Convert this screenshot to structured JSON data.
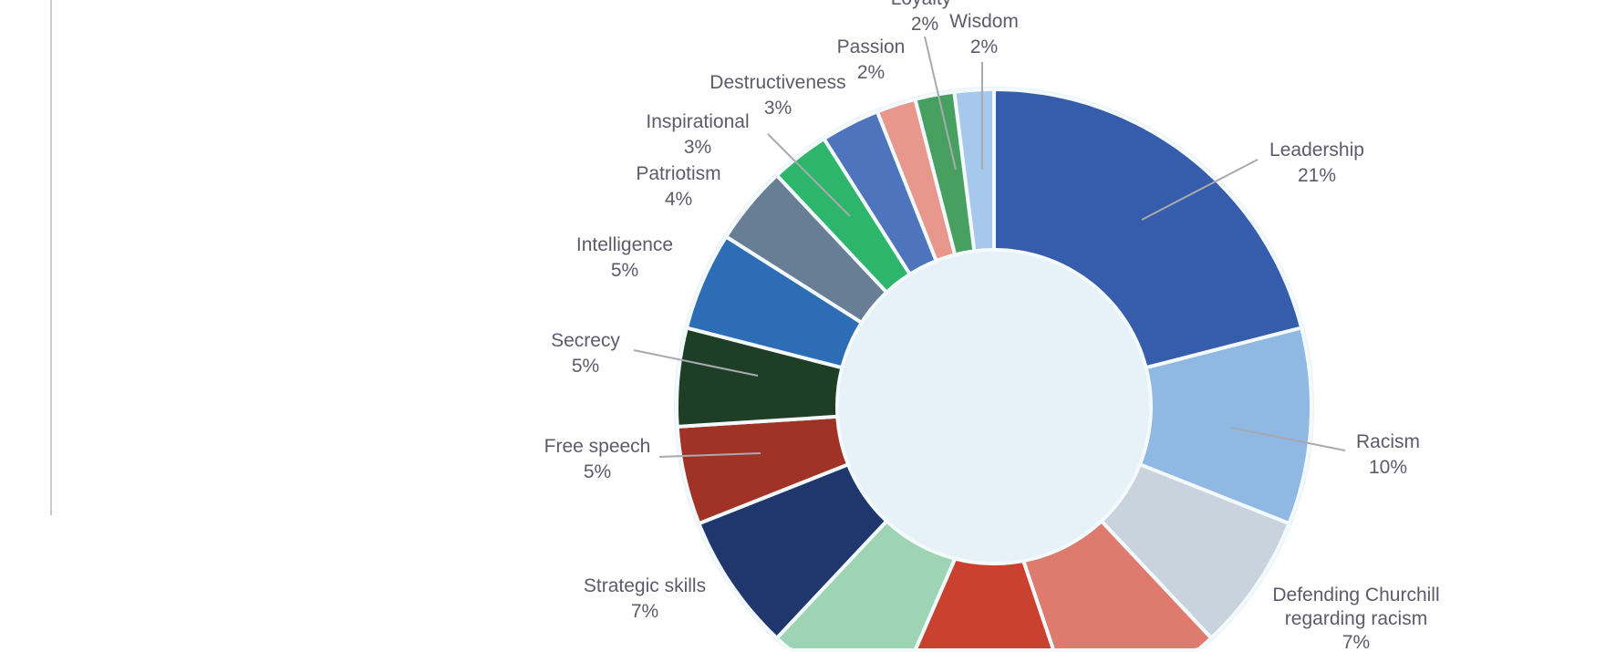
{
  "chart_data": {
    "type": "pie",
    "donut": true,
    "unit": "%",
    "slices": [
      {
        "name": "Leadership",
        "label_lines": [
          "Leadership"
        ],
        "value": 21,
        "value_label": "21%",
        "color": "#365DAB"
      },
      {
        "name": "Racism",
        "label_lines": [
          "Racism"
        ],
        "value": 10,
        "value_label": "10%",
        "color": "#8FB8E3"
      },
      {
        "name": "Defending Churchill regarding racism",
        "label_lines": [
          "Defending Churchill",
          "regarding racism"
        ],
        "value": 7,
        "value_label": "7%",
        "color": "#C8D3DE"
      },
      {
        "name": "",
        "label_lines": [],
        "value": 9,
        "value_label": "",
        "color": "#DE7A6E"
      },
      {
        "name": "",
        "label_lines": [],
        "value": 7,
        "value_label": "",
        "color": "#CB4130"
      },
      {
        "name": "",
        "label_lines": [],
        "value": 8,
        "value_label": "",
        "color": "#9DD4B4"
      },
      {
        "name": "Strategic skills",
        "label_lines": [
          "Strategic skills"
        ],
        "value": 7,
        "value_label": "7%",
        "color": "#1F376C"
      },
      {
        "name": "Free speech",
        "label_lines": [
          "Free speech"
        ],
        "value": 5,
        "value_label": "5%",
        "color": "#A13226"
      },
      {
        "name": "Secrecy",
        "label_lines": [
          "Secrecy"
        ],
        "value": 5,
        "value_label": "5%",
        "color": "#1E3F26"
      },
      {
        "name": "Intelligence",
        "label_lines": [
          "Intelligence"
        ],
        "value": 5,
        "value_label": "5%",
        "color": "#2D6DB5"
      },
      {
        "name": "Patriotism",
        "label_lines": [
          "Patriotism"
        ],
        "value": 4,
        "value_label": "4%",
        "color": "#687E94"
      },
      {
        "name": "Inspirational",
        "label_lines": [
          "Inspirational"
        ],
        "value": 3,
        "value_label": "3%",
        "color": "#2DB56B"
      },
      {
        "name": "Destructiveness",
        "label_lines": [
          "Destructiveness"
        ],
        "value": 3,
        "value_label": "3%",
        "color": "#4E74BE"
      },
      {
        "name": "Passion",
        "label_lines": [
          "Passion"
        ],
        "value": 2,
        "value_label": "2%",
        "color": "#E8978D"
      },
      {
        "name": "Loyalty",
        "label_lines": [
          "Loyalty"
        ],
        "value": 2,
        "value_label": "2%",
        "color": "#48A060"
      },
      {
        "name": "Wisdom",
        "label_lines": [
          "Wisdom"
        ],
        "value": 2,
        "value_label": "2%",
        "color": "#A6C8EC"
      }
    ]
  }
}
